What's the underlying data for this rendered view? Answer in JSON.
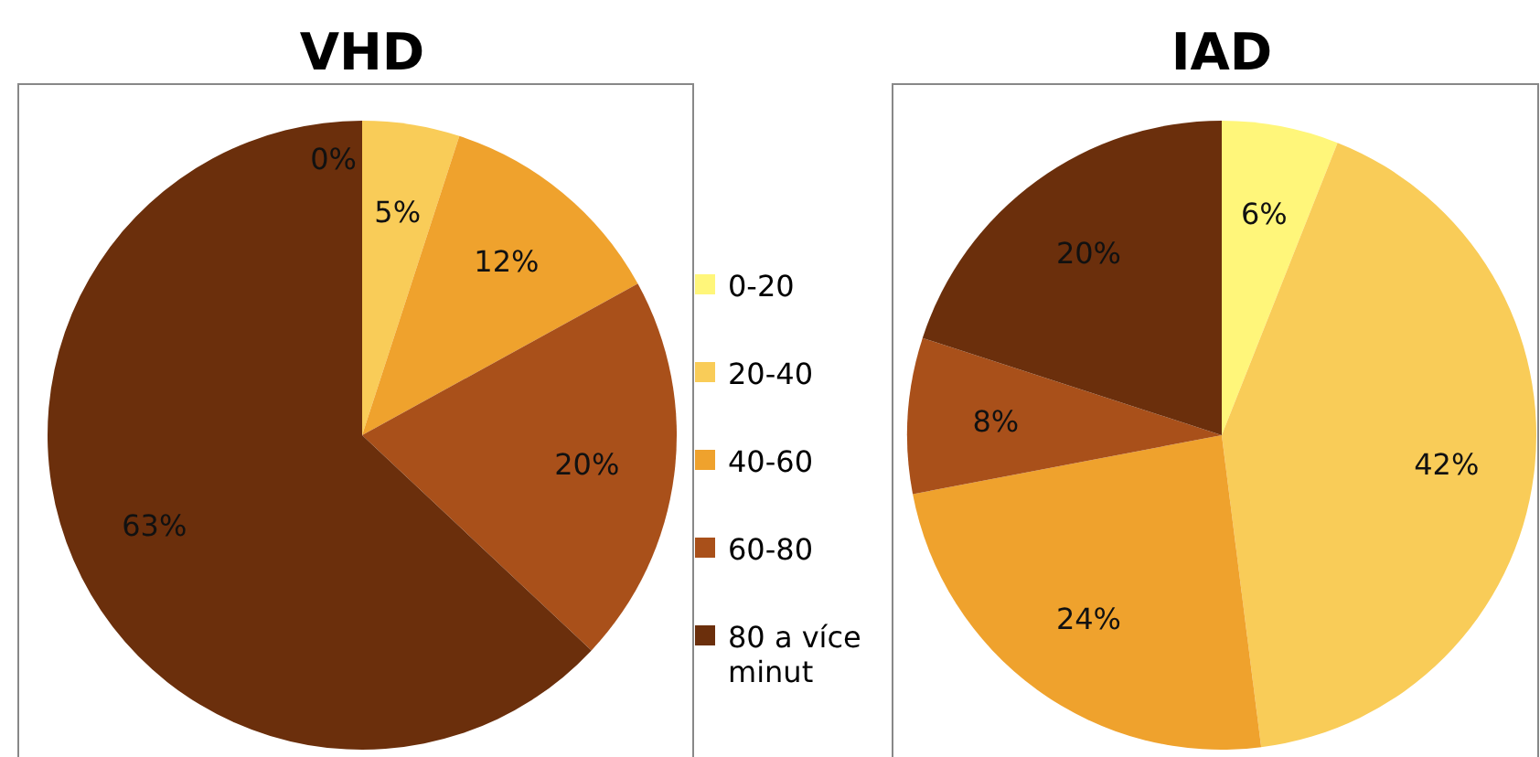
{
  "chart_data": [
    {
      "type": "pie",
      "title": "VHD",
      "categories": [
        "0-20",
        "20-40",
        "40-60",
        "60-80",
        "80 a více minut"
      ],
      "values": [
        0,
        5,
        12,
        20,
        63
      ],
      "colors": [
        "#fff67a",
        "#f9cc58",
        "#efa22d",
        "#a9501a",
        "#6b2f0c"
      ],
      "value_labels": [
        "0%",
        "5%",
        "12%",
        "20%",
        "63%"
      ],
      "legend": "right"
    },
    {
      "type": "pie",
      "title": "IAD",
      "categories": [
        null,
        null,
        null,
        null,
        null
      ],
      "values": [
        6,
        42,
        24,
        8,
        20
      ],
      "colors": [
        "#fff67a",
        "#f9cc58",
        "#efa22d",
        "#a9501a",
        "#6b2f0c"
      ],
      "value_labels": [
        "6%",
        "42%",
        "24%",
        "8%",
        "20%"
      ]
    }
  ]
}
